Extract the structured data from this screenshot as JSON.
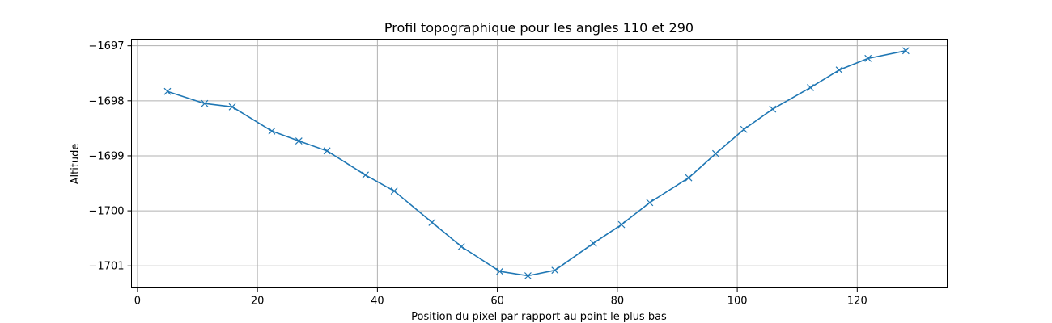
{
  "chart_data": {
    "type": "line",
    "title": "Profil topographique pour les angles 110 et 290",
    "xlabel": "Position du pixel par rapport au point le plus bas",
    "ylabel": "Altitude",
    "xlim": [
      -1,
      135
    ],
    "ylim": [
      -1701.4,
      -1696.88
    ],
    "xticks": [
      0,
      20,
      40,
      60,
      80,
      100,
      120
    ],
    "yticks": [
      -1701,
      -1700,
      -1699,
      -1698,
      -1697
    ],
    "grid": true,
    "marker": "x",
    "color": "#1f77b4",
    "series": [
      {
        "x": [
          5,
          11.2,
          15.8,
          22.4,
          26.9,
          31.6,
          38,
          42.8,
          49.1,
          54,
          60.4,
          65.1,
          69.6,
          76,
          80.7,
          85.4,
          91.9,
          96.4,
          101.1,
          105.9,
          112.2,
          117,
          121.8,
          128.1
        ],
        "y": [
          -1697.83,
          -1698.05,
          -1698.11,
          -1698.55,
          -1698.73,
          -1698.91,
          -1699.35,
          -1699.64,
          -1700.21,
          -1700.65,
          -1701.1,
          -1701.18,
          -1701.08,
          -1700.59,
          -1700.25,
          -1699.85,
          -1699.4,
          -1698.96,
          -1698.52,
          -1698.15,
          -1697.76,
          -1697.44,
          -1697.23,
          -1697.09
        ]
      }
    ]
  }
}
